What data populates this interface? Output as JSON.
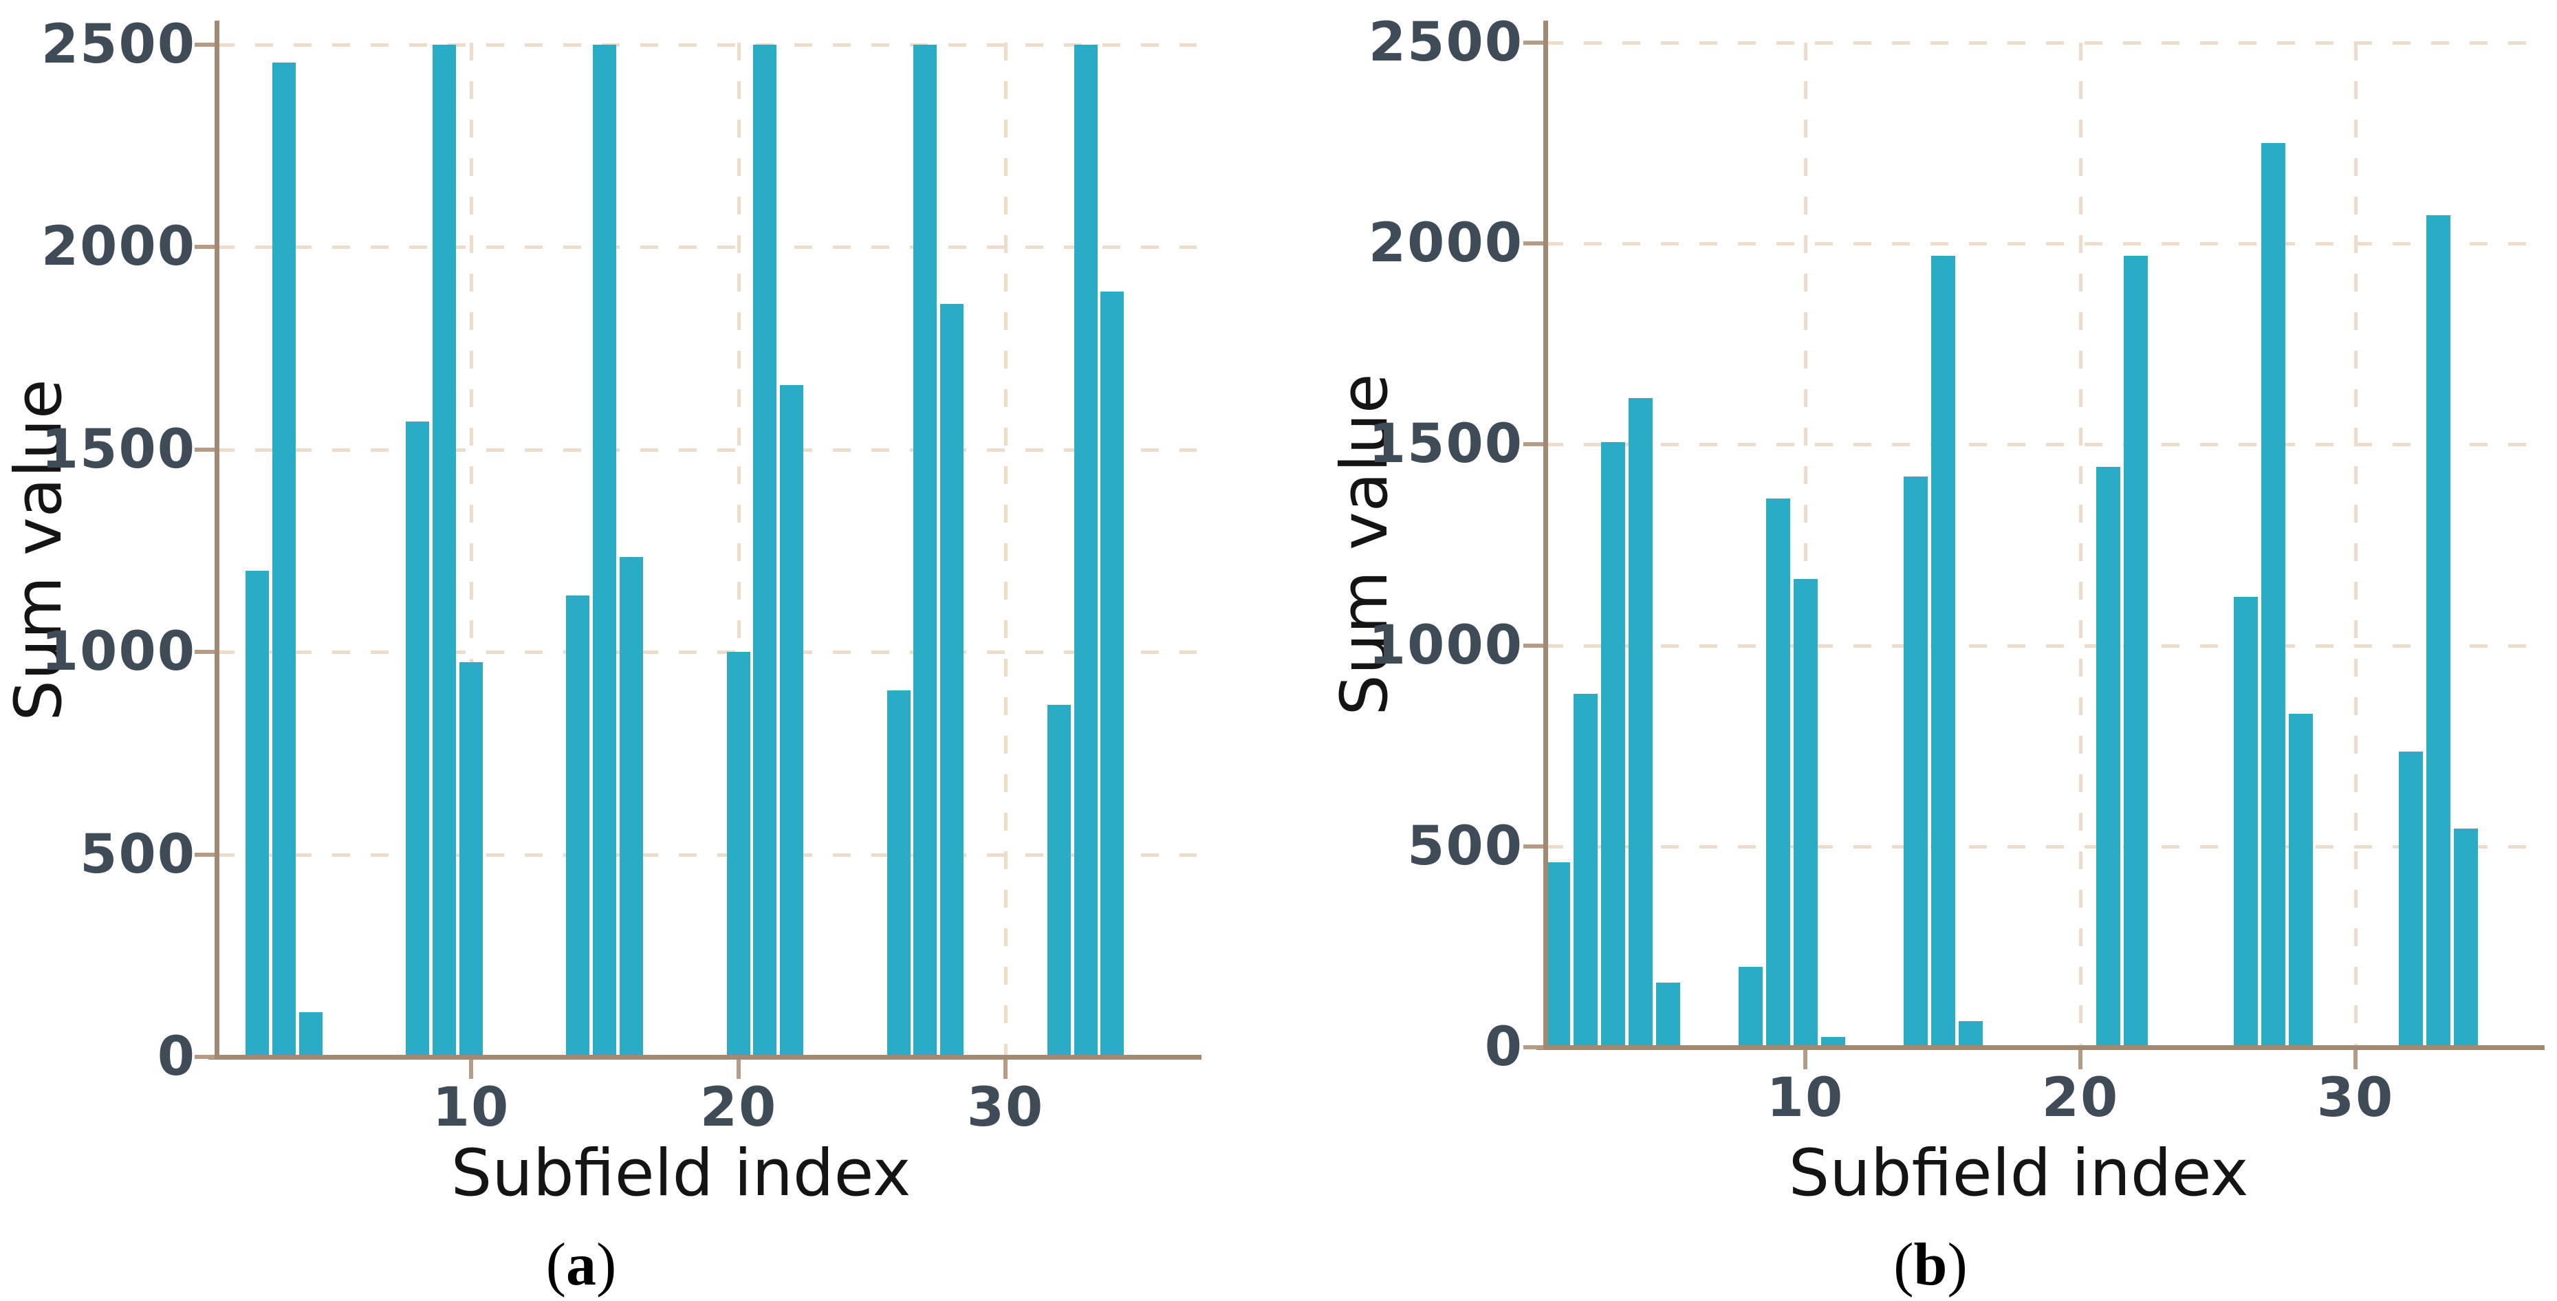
{
  "figure": {
    "background": "#ffffff",
    "colors": {
      "bar": "#29acc4",
      "axis_line": "#a28973",
      "tick_mark": "#b59c86",
      "gridline": "#eedccb",
      "tick_label": "#3f4b57",
      "axis_title": "#141414"
    }
  },
  "captions": [
    {
      "open": "(",
      "letter": "a",
      "close": ")"
    },
    {
      "open": "(",
      "letter": "b",
      "close": ")"
    }
  ],
  "chart_data": [
    {
      "type": "bar",
      "panel_label": "(a)",
      "title": "",
      "xlabel": "Subfield index",
      "ylabel": "Sum value",
      "x": [
        2,
        3,
        4,
        8,
        9,
        10,
        14,
        15,
        16,
        20,
        21,
        22,
        26,
        27,
        28,
        32,
        33,
        34
      ],
      "values": [
        1200,
        2455,
        110,
        1570,
        2500,
        975,
        1140,
        2500,
        1235,
        1000,
        2500,
        1660,
        905,
        2500,
        1860,
        870,
        2500,
        1890
      ],
      "xticks": [
        10,
        20,
        30
      ],
      "yticks": [
        0,
        500,
        1000,
        1500,
        2000,
        2500
      ],
      "xlim": [
        0.4,
        37.2
      ],
      "ylim": [
        0,
        2500
      ],
      "grid": true,
      "legend": false,
      "bar_color": "#29acc4"
    },
    {
      "type": "bar",
      "panel_label": "(b)",
      "title": "",
      "xlabel": "Subfield index",
      "ylabel": "Sum value",
      "x": [
        1,
        2,
        3,
        4,
        5,
        8,
        9,
        10,
        11,
        14,
        15,
        16,
        21,
        22,
        26,
        27,
        28,
        32,
        33,
        34
      ],
      "values": [
        460,
        880,
        1505,
        1615,
        160,
        200,
        1365,
        1165,
        25,
        1420,
        1970,
        65,
        1445,
        1970,
        1120,
        2250,
        830,
        735,
        2070,
        545
      ],
      "xticks": [
        10,
        20,
        30
      ],
      "yticks": [
        0,
        500,
        1000,
        1500,
        2000,
        2500
      ],
      "xlim": [
        0.5,
        36.6
      ],
      "ylim": [
        0,
        2500
      ],
      "grid": true,
      "legend": false,
      "bar_color": "#29acc4"
    }
  ]
}
